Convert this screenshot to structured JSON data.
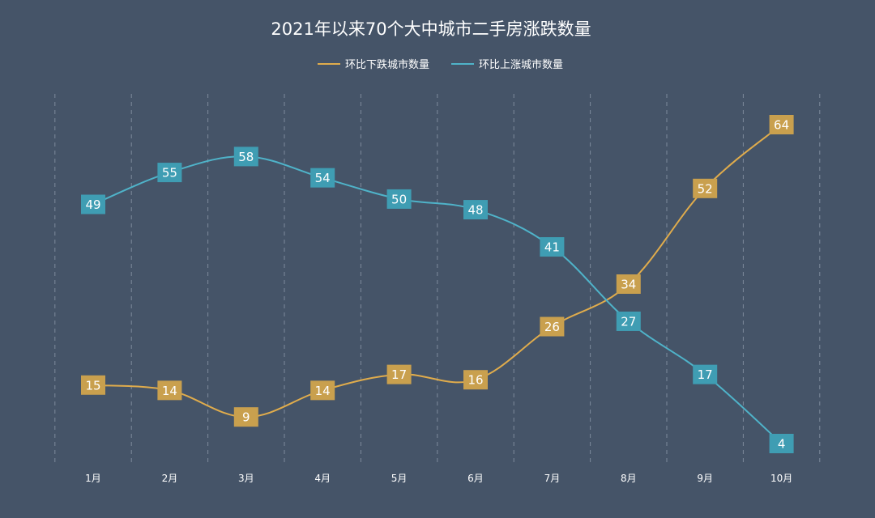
{
  "chart_data": {
    "type": "line",
    "title": "2021年以来70个大中城市二手房涨跌数量",
    "categories": [
      "1月",
      "2月",
      "3月",
      "4月",
      "5月",
      "6月",
      "7月",
      "8月",
      "9月",
      "10月"
    ],
    "series": [
      {
        "name": "环比下跌城市数量",
        "color": "#e0ac4c",
        "label_bg": "#c9a04e",
        "values": [
          15,
          14,
          9,
          14,
          17,
          16,
          26,
          34,
          52,
          64
        ]
      },
      {
        "name": "环比上涨城市数量",
        "color": "#4fb3c9",
        "label_bg": "#3f9db3",
        "values": [
          49,
          55,
          58,
          54,
          50,
          48,
          41,
          27,
          17,
          4
        ]
      }
    ],
    "ylim": [
      0,
      70
    ],
    "grid": "vertical dashed",
    "legend_position": "top-center",
    "xlabel": "",
    "ylabel": ""
  }
}
